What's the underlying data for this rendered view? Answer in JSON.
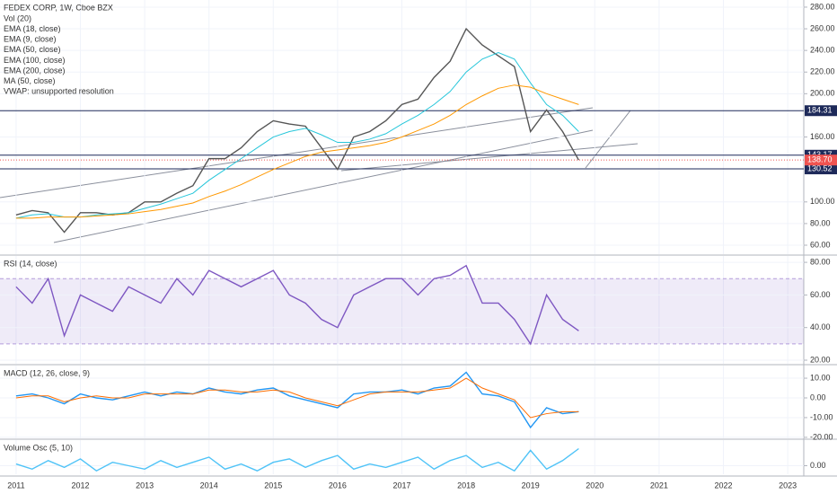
{
  "chart_data": [
    {
      "type": "line",
      "title": "FEDEX CORP, 1W, Cboe BZX",
      "indicators": [
        "Vol (20)",
        "EMA (18, close)",
        "EMA (9, close)",
        "EMA (50, close)",
        "EMA (100, close)",
        "EMA (200, close)",
        "MA (50, close)",
        "VWAP: unsupported resolution"
      ],
      "x": [
        2011,
        2011.25,
        2011.5,
        2011.75,
        2012,
        2012.25,
        2012.5,
        2012.75,
        2013,
        2013.25,
        2013.5,
        2013.75,
        2014,
        2014.25,
        2014.5,
        2014.75,
        2015,
        2015.25,
        2015.5,
        2015.75,
        2016,
        2016.25,
        2016.5,
        2016.75,
        2017,
        2017.25,
        2017.5,
        2017.75,
        2018,
        2018.25,
        2018.5,
        2018.75,
        2019,
        2019.25,
        2019.5,
        2019.75
      ],
      "series": [
        {
          "color": "#555555",
          "values": [
            88,
            92,
            90,
            72,
            90,
            90,
            88,
            90,
            100,
            100,
            108,
            115,
            140,
            140,
            150,
            165,
            175,
            172,
            170,
            150,
            130,
            160,
            165,
            175,
            190,
            195,
            215,
            230,
            260,
            245,
            235,
            225,
            165,
            185,
            165,
            138.7
          ]
        },
        {
          "name": "EMA (50, close)",
          "color": "#26c6da",
          "values": [
            85,
            88,
            89,
            86,
            86,
            88,
            89,
            90,
            94,
            98,
            103,
            108,
            120,
            130,
            140,
            150,
            160,
            165,
            168,
            162,
            155,
            155,
            158,
            163,
            172,
            180,
            190,
            202,
            220,
            232,
            238,
            232,
            210,
            190,
            180,
            165
          ]
        },
        {
          "name": "EMA (200, close)",
          "color": "#ff9800",
          "values": [
            85,
            85,
            86,
            86,
            86,
            87,
            88,
            89,
            91,
            93,
            96,
            99,
            105,
            110,
            116,
            123,
            130,
            136,
            142,
            146,
            148,
            150,
            152,
            155,
            160,
            166,
            172,
            180,
            190,
            198,
            205,
            208,
            206,
            200,
            195,
            190
          ]
        }
      ],
      "levels": [
        184.31,
        143.17,
        130.52
      ],
      "last_price": {
        "value": 138.7,
        "label": "138.70"
      },
      "ylim": [
        51.7,
        286.6
      ],
      "yticks": [
        {
          "value": 60,
          "label": "60.00"
        },
        {
          "value": 80,
          "label": "80.00"
        },
        {
          "value": 100,
          "label": "100.00"
        },
        {
          "value": 160,
          "label": "160.00"
        },
        {
          "value": 200,
          "label": "200.00"
        },
        {
          "value": 220,
          "label": "220.00"
        },
        {
          "value": 240,
          "label": "240.00"
        },
        {
          "value": 260,
          "label": "260.00"
        },
        {
          "value": 280,
          "label": "280.00"
        }
      ]
    },
    {
      "type": "line",
      "title": "RSI (14, close)",
      "x": [
        2011,
        2011.25,
        2011.5,
        2011.75,
        2012,
        2012.25,
        2012.5,
        2012.75,
        2013,
        2013.25,
        2013.5,
        2013.75,
        2014,
        2014.25,
        2014.5,
        2014.75,
        2015,
        2015.25,
        2015.5,
        2015.75,
        2016,
        2016.25,
        2016.5,
        2016.75,
        2017,
        2017.25,
        2017.5,
        2017.75,
        2018,
        2018.25,
        2018.5,
        2018.75,
        2019,
        2019.25,
        2019.5,
        2019.75
      ],
      "series": [
        {
          "color": "#7e57c2",
          "values": [
            65,
            55,
            70,
            35,
            60,
            55,
            50,
            65,
            60,
            55,
            70,
            60,
            75,
            70,
            65,
            70,
            75,
            60,
            55,
            45,
            40,
            60,
            65,
            70,
            70,
            60,
            70,
            72,
            78,
            55,
            55,
            45,
            30,
            60,
            45,
            38
          ]
        }
      ],
      "band": [
        30,
        70
      ],
      "ylim": [
        17.8,
        83.9
      ],
      "yticks": [
        {
          "value": 20,
          "label": "20.00"
        },
        {
          "value": 40,
          "label": "40.00"
        },
        {
          "value": 60,
          "label": "60.00"
        },
        {
          "value": 80,
          "label": "80.00"
        }
      ]
    },
    {
      "type": "line",
      "title": "MACD (12, 26, close, 9)",
      "x": [
        2011,
        2011.25,
        2011.5,
        2011.75,
        2012,
        2012.25,
        2012.5,
        2012.75,
        2013,
        2013.25,
        2013.5,
        2013.75,
        2014,
        2014.25,
        2014.5,
        2014.75,
        2015,
        2015.25,
        2015.5,
        2015.75,
        2016,
        2016.25,
        2016.5,
        2016.75,
        2017,
        2017.25,
        2017.5,
        2017.75,
        2018,
        2018.25,
        2018.5,
        2018.75,
        2019,
        2019.25,
        2019.5,
        2019.75
      ],
      "series": [
        {
          "color": "#2196f3",
          "values": [
            1,
            2,
            0,
            -3,
            2,
            0,
            -1,
            1,
            3,
            1,
            3,
            2,
            5,
            3,
            2,
            4,
            5,
            1,
            -1,
            -3,
            -5,
            2,
            3,
            3,
            4,
            2,
            5,
            6,
            13,
            2,
            1,
            -2,
            -15,
            -5,
            -8,
            -7
          ]
        },
        {
          "color": "#ff6d00",
          "values": [
            0,
            1,
            1,
            -2,
            0,
            1,
            0,
            0,
            2,
            2,
            2,
            2,
            4,
            4,
            3,
            3,
            4,
            3,
            0,
            -2,
            -4,
            -1,
            2,
            3,
            3,
            3,
            4,
            5,
            10,
            5,
            2,
            -1,
            -10,
            -8,
            -7,
            -7
          ]
        }
      ],
      "ylim": [
        -20.5,
        16.4
      ],
      "yticks": [
        {
          "value": -20,
          "label": "-20.00"
        },
        {
          "value": -10,
          "label": "-10.00"
        },
        {
          "value": 0,
          "label": "0.00"
        },
        {
          "value": 10,
          "label": "10.00"
        }
      ]
    },
    {
      "type": "line",
      "title": "Volume Osc (5, 10)",
      "x": [
        2011,
        2011.25,
        2011.5,
        2011.75,
        2012,
        2012.25,
        2012.5,
        2012.75,
        2013,
        2013.25,
        2013.5,
        2013.75,
        2014,
        2014.25,
        2014.5,
        2014.75,
        2015,
        2015.25,
        2015.5,
        2015.75,
        2016,
        2016.25,
        2016.5,
        2016.75,
        2017,
        2017.25,
        2017.5,
        2017.75,
        2018,
        2018.25,
        2018.5,
        2018.75,
        2019,
        2019.25,
        2019.5,
        2019.75
      ],
      "series": [
        {
          "color": "#4fc3f7",
          "values": [
            10,
            -20,
            30,
            -10,
            40,
            -30,
            20,
            0,
            -20,
            30,
            -10,
            20,
            50,
            -20,
            10,
            -30,
            20,
            40,
            -10,
            30,
            60,
            -20,
            10,
            -10,
            20,
            50,
            -20,
            30,
            60,
            -10,
            20,
            -30,
            90,
            -20,
            30,
            100
          ]
        }
      ],
      "ylim": [
        -50,
        150
      ],
      "yticks": [
        {
          "value": 0,
          "label": "0.00"
        }
      ],
      "xlim": [
        2010.75,
        2023.25
      ],
      "xticks": [
        2011,
        2012,
        2013,
        2014,
        2015,
        2016,
        2017,
        2018,
        2019,
        2020,
        2021,
        2022,
        2023
      ]
    }
  ]
}
